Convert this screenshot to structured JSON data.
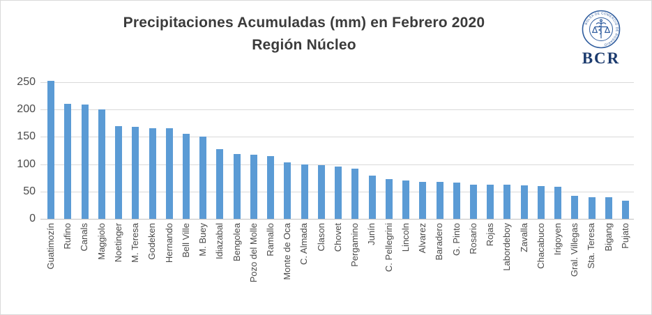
{
  "title": {
    "line1": "Precipitaciones Acumuladas (mm) en Febrero 2020",
    "line2": "Región Núcleo"
  },
  "logo": {
    "ring_text": "BOLSA DE COMERCIO DE ROSARIO",
    "abbr": "BCR"
  },
  "colors": {
    "bar": "#5b9bd5",
    "gridline": "#d9d9d9",
    "axis_line": "#bfbfbf",
    "title_text": "#3b3b3b",
    "tick_text": "#4a4a4a",
    "logo_seal_blue": "#2e5c9e",
    "logo_text_navy": "#1c3b6e",
    "border": "#d9d9d9"
  },
  "chart_data": {
    "type": "bar",
    "title": "Precipitaciones Acumuladas (mm) en Febrero 2020 — Región Núcleo",
    "xlabel": "",
    "ylabel": "",
    "ylim": [
      0,
      250
    ],
    "yticks": [
      0,
      50,
      100,
      150,
      200,
      250
    ],
    "grid": true,
    "legend": false,
    "bar_color": "#5b9bd5",
    "categories": [
      "Guatimozín",
      "Rufino",
      "Canals",
      "Maggiolo",
      "Noetinger",
      "M. Teresa",
      "Godeken",
      "Hernando",
      "Bell Ville",
      "M. Buey",
      "Idiazabal",
      "Bengolea",
      "Pozo del Molle",
      "Ramallo",
      "Monte de Oca",
      "C. Almada",
      "Clason",
      "Chovet",
      "Pergamino",
      "Junín",
      "C. Pellegrini",
      "Lincoln",
      "Alvarez",
      "Baradero",
      "G. Pinto",
      "Rosario",
      "Rojas",
      "Labordeboy",
      "Zavalla",
      "Chacabuco",
      "Irigoyen",
      "Gral. Villegas",
      "Sta. Teresa",
      "Bigang",
      "Pujato"
    ],
    "values": [
      253,
      210,
      209,
      200,
      170,
      168,
      166,
      166,
      156,
      150,
      128,
      119,
      117,
      115,
      103,
      100,
      98,
      96,
      92,
      79,
      73,
      70,
      68,
      68,
      66,
      63,
      62,
      62,
      61,
      60,
      59,
      42,
      40,
      40,
      33
    ]
  }
}
